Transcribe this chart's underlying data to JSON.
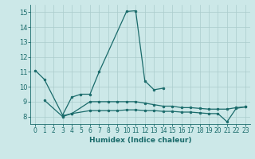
{
  "xlabel": "Humidex (Indice chaleur)",
  "bg_color": "#cce8e8",
  "line_color": "#1a6b6b",
  "grid_color": "#aacccc",
  "xlim": [
    -0.5,
    23.5
  ],
  "ylim": [
    7.5,
    15.5
  ],
  "xticks": [
    0,
    1,
    2,
    3,
    4,
    5,
    6,
    7,
    8,
    9,
    10,
    11,
    12,
    13,
    14,
    15,
    16,
    17,
    18,
    19,
    20,
    21,
    22,
    23
  ],
  "yticks": [
    8,
    9,
    10,
    11,
    12,
    13,
    14,
    15
  ],
  "curve1_x": [
    0,
    1,
    3,
    4,
    5,
    6,
    7,
    10,
    11,
    12,
    13,
    14
  ],
  "curve1_y": [
    11.1,
    10.5,
    8.1,
    9.3,
    9.5,
    9.5,
    11.0,
    15.05,
    15.1,
    10.4,
    9.8,
    9.9
  ],
  "curve2_x": [
    1,
    3,
    4,
    6,
    7,
    8,
    9,
    10,
    11,
    12,
    13,
    14,
    15,
    16,
    17,
    18,
    19,
    20,
    21,
    22,
    23
  ],
  "curve2_y": [
    9.1,
    8.0,
    8.2,
    9.0,
    9.0,
    9.0,
    9.0,
    9.0,
    9.0,
    8.9,
    8.8,
    8.7,
    8.7,
    8.6,
    8.6,
    8.55,
    8.5,
    8.5,
    8.5,
    8.6,
    8.65
  ],
  "curve3_x": [
    3,
    4,
    6,
    7,
    8,
    9,
    10,
    11,
    12,
    13,
    14,
    15,
    16,
    17,
    18,
    19,
    20,
    21,
    22,
    23
  ],
  "curve3_y": [
    8.05,
    8.2,
    8.4,
    8.4,
    8.4,
    8.4,
    8.45,
    8.45,
    8.4,
    8.4,
    8.35,
    8.35,
    8.3,
    8.3,
    8.25,
    8.2,
    8.2,
    7.65,
    8.55,
    8.65
  ]
}
